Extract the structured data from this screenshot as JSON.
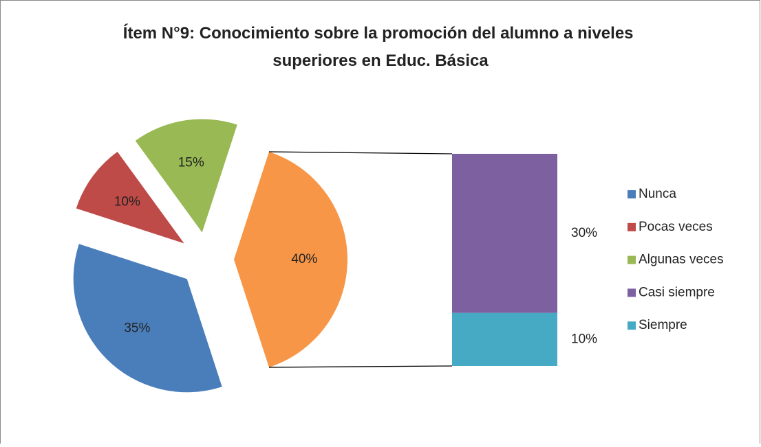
{
  "chart_data": {
    "type": "bar-of-pie",
    "title": "Ítem N°9: Conocimiento sobre la promoción del alumno a niveles superiores en Educ. Básica",
    "pie": {
      "categories": [
        "Nunca",
        "Pocas veces",
        "Algunas veces"
      ],
      "values": [
        35,
        10,
        15
      ],
      "value_labels": [
        "35%",
        "10%",
        "15%"
      ],
      "colors": [
        "#4a7ebb",
        "#be4b48",
        "#98b954"
      ]
    },
    "other": {
      "value": 40,
      "value_label": "40%",
      "color": "#f79646"
    },
    "bar": {
      "categories": [
        "Casi siempre",
        "Siempre"
      ],
      "values": [
        30,
        10
      ],
      "value_labels": [
        "30%",
        "10%"
      ],
      "colors": [
        "#7d60a0",
        "#46aac5"
      ]
    },
    "legend": "right"
  }
}
